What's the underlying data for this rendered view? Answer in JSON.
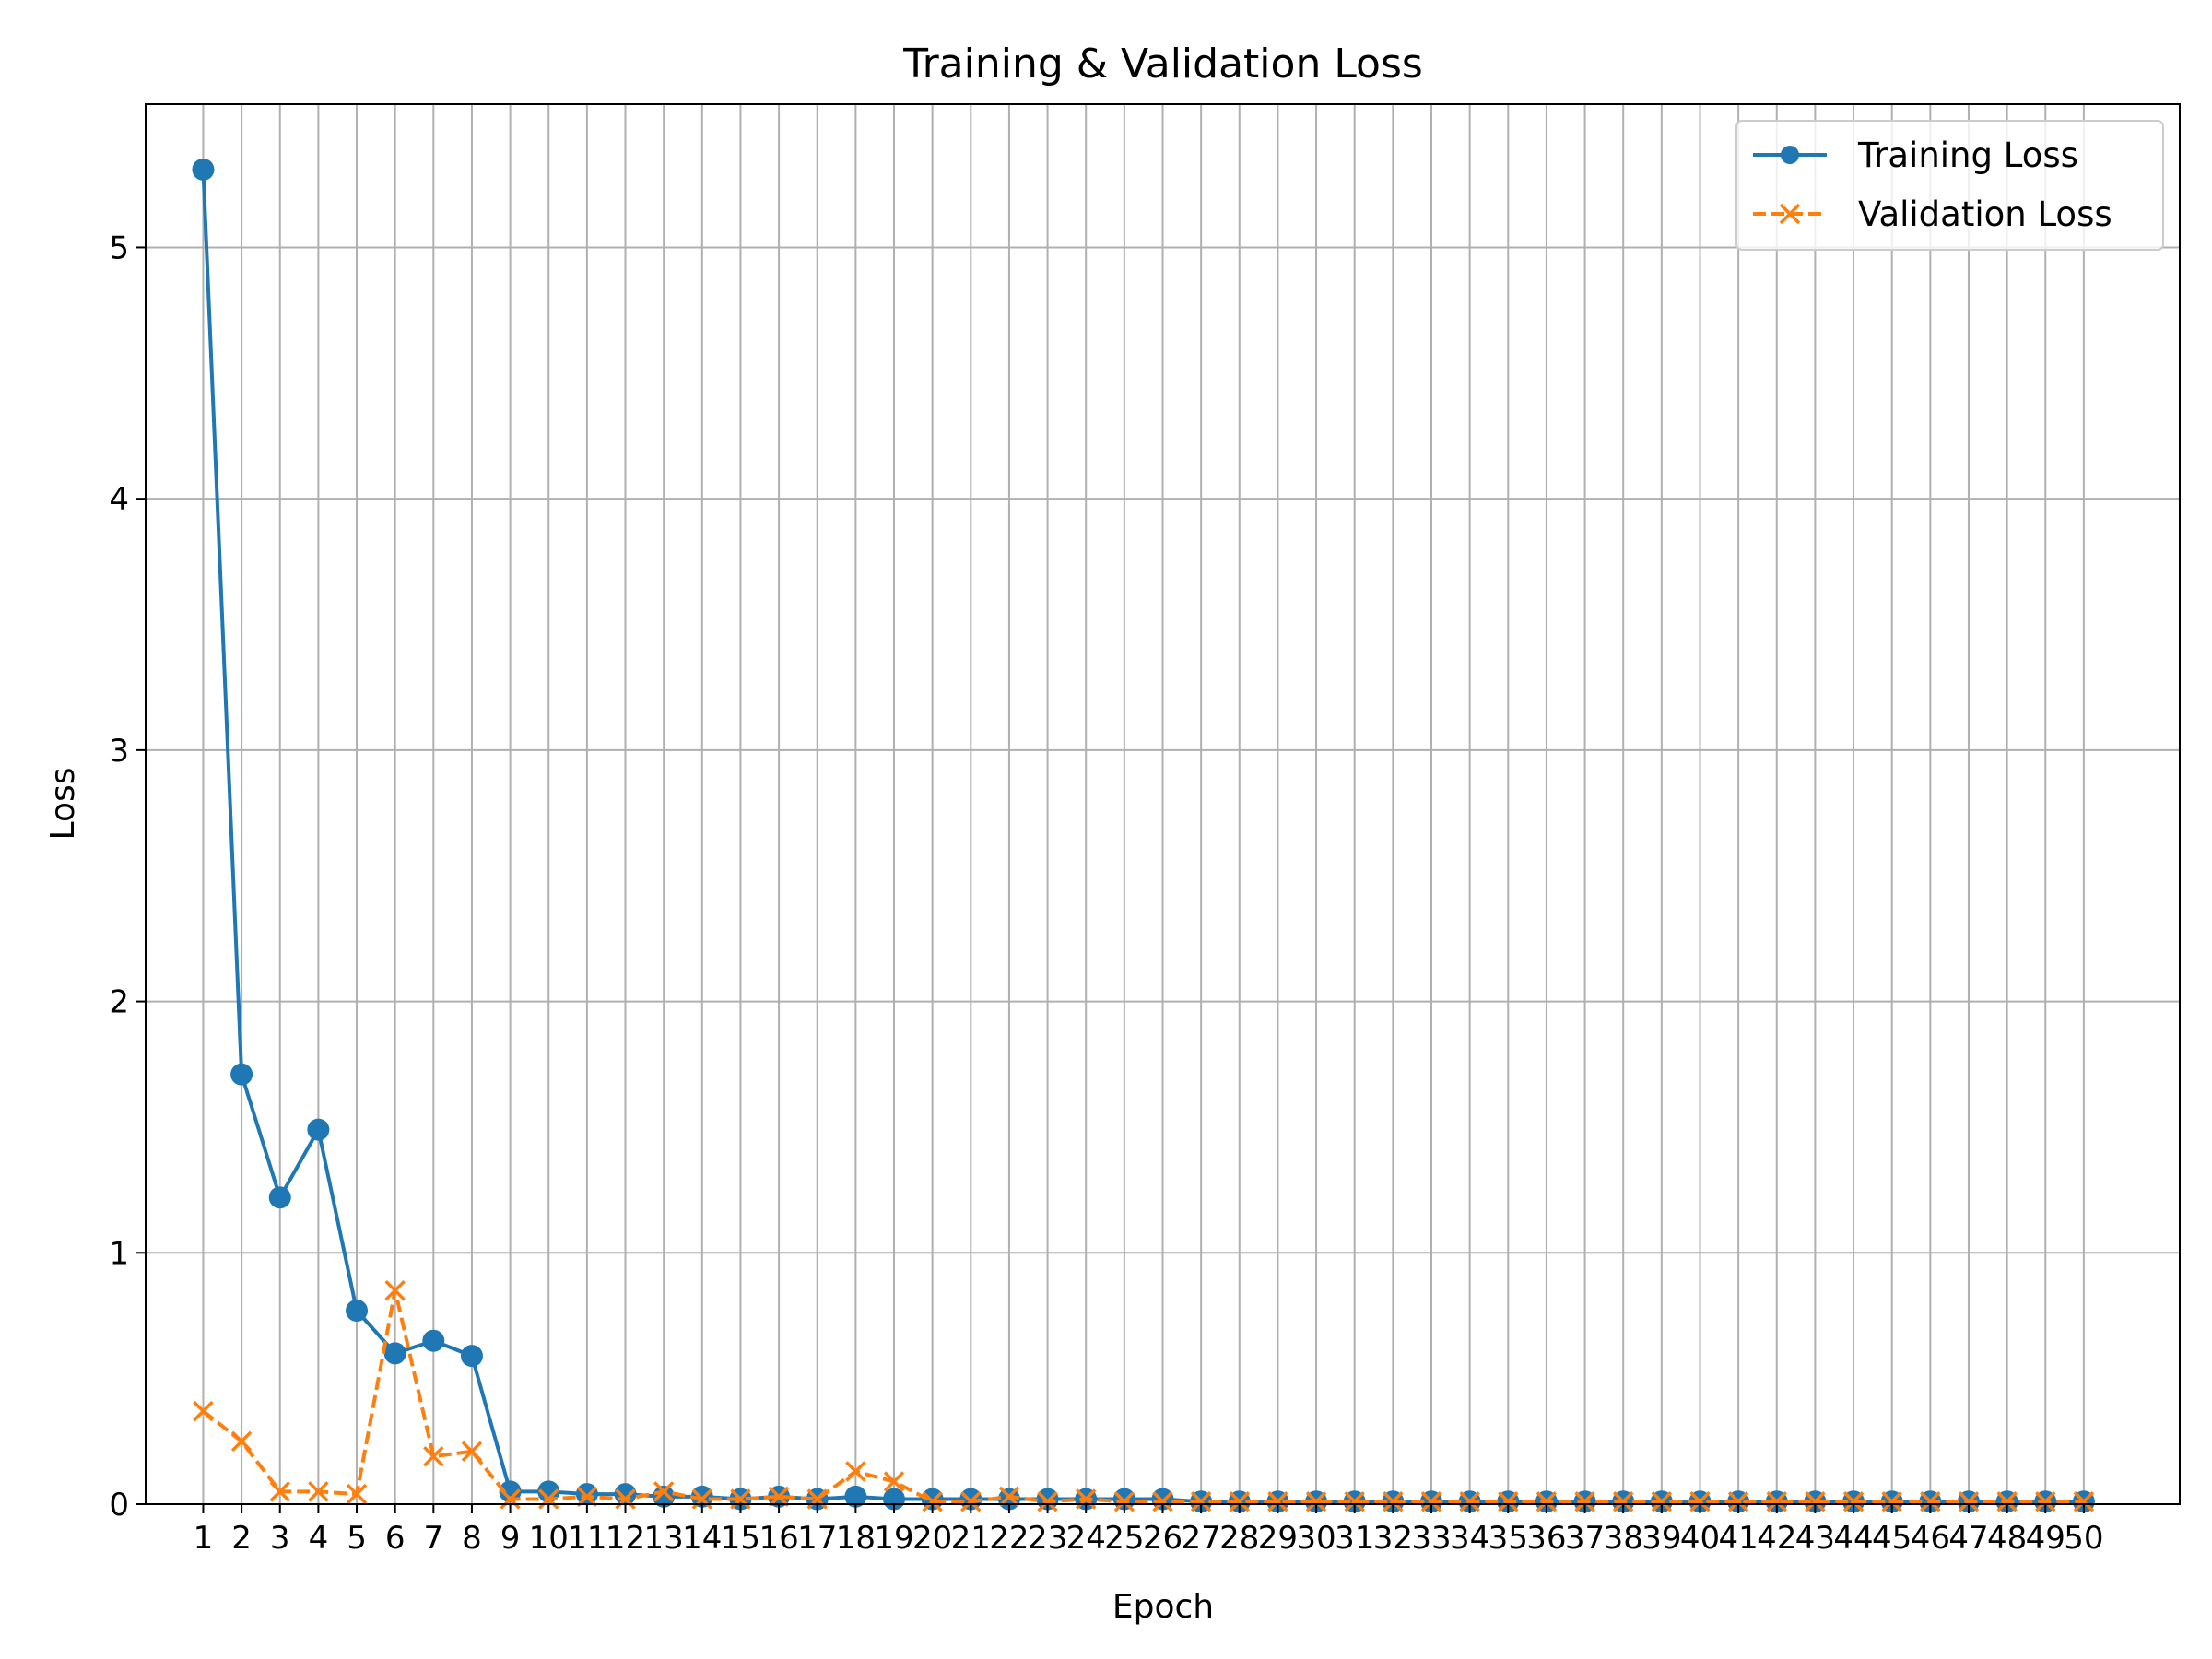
{
  "chart_data": {
    "type": "line",
    "title": "Training & Validation Loss",
    "xlabel": "Epoch",
    "ylabel": "Loss",
    "x": [
      1,
      2,
      3,
      4,
      5,
      6,
      7,
      8,
      9,
      10,
      11,
      12,
      13,
      14,
      15,
      16,
      17,
      18,
      19,
      20,
      21,
      22,
      23,
      24,
      25,
      26,
      27,
      28,
      29,
      30,
      31,
      32,
      33,
      34,
      35,
      36,
      37,
      38,
      39,
      40,
      41,
      42,
      43,
      44,
      45,
      46,
      47,
      48,
      49,
      50
    ],
    "xticks": [
      "1",
      "2",
      "3",
      "4",
      "5",
      "6",
      "7",
      "8",
      "9",
      "10",
      "11",
      "12",
      "13",
      "14",
      "15",
      "16",
      "17",
      "18",
      "19",
      "20",
      "21",
      "22",
      "23",
      "24",
      "25",
      "26",
      "27",
      "28",
      "29",
      "30",
      "31",
      "32",
      "33",
      "34",
      "35",
      "36",
      "37",
      "38",
      "39",
      "40",
      "41",
      "42",
      "43",
      "44",
      "45",
      "46",
      "47",
      "48",
      "49",
      "50"
    ],
    "xlim": [
      -0.5,
      52.5
    ],
    "ylim": [
      0,
      5.57
    ],
    "yticks": [
      0,
      1,
      2,
      3,
      4,
      5
    ],
    "grid": true,
    "legend_position": "top-right",
    "series": [
      {
        "name": "Training Loss",
        "color": "#1f77b4",
        "line_style": "solid",
        "marker": "circle",
        "values": [
          5.31,
          1.71,
          1.22,
          1.49,
          0.77,
          0.6,
          0.65,
          0.59,
          0.05,
          0.05,
          0.04,
          0.04,
          0.03,
          0.03,
          0.02,
          0.03,
          0.02,
          0.03,
          0.02,
          0.02,
          0.02,
          0.02,
          0.02,
          0.02,
          0.02,
          0.02,
          0.01,
          0.01,
          0.01,
          0.01,
          0.01,
          0.01,
          0.01,
          0.01,
          0.01,
          0.01,
          0.01,
          0.01,
          0.01,
          0.01,
          0.01,
          0.01,
          0.01,
          0.01,
          0.01,
          0.01,
          0.01,
          0.01,
          0.01,
          0.01
        ]
      },
      {
        "name": "Validation Loss",
        "color": "#ff7f0e",
        "line_style": "dashed",
        "marker": "x",
        "values": [
          0.37,
          0.25,
          0.05,
          0.05,
          0.04,
          0.85,
          0.19,
          0.21,
          0.02,
          0.02,
          0.03,
          0.02,
          0.05,
          0.02,
          0.02,
          0.03,
          0.02,
          0.13,
          0.09,
          0.01,
          0.01,
          0.03,
          0.01,
          0.02,
          0.01,
          0.01,
          0.01,
          0.01,
          0.01,
          0.01,
          0.01,
          0.01,
          0.01,
          0.01,
          0.01,
          0.01,
          0.01,
          0.01,
          0.01,
          0.01,
          0.01,
          0.01,
          0.01,
          0.01,
          0.01,
          0.01,
          0.01,
          0.01,
          0.01,
          0.01
        ]
      }
    ]
  }
}
